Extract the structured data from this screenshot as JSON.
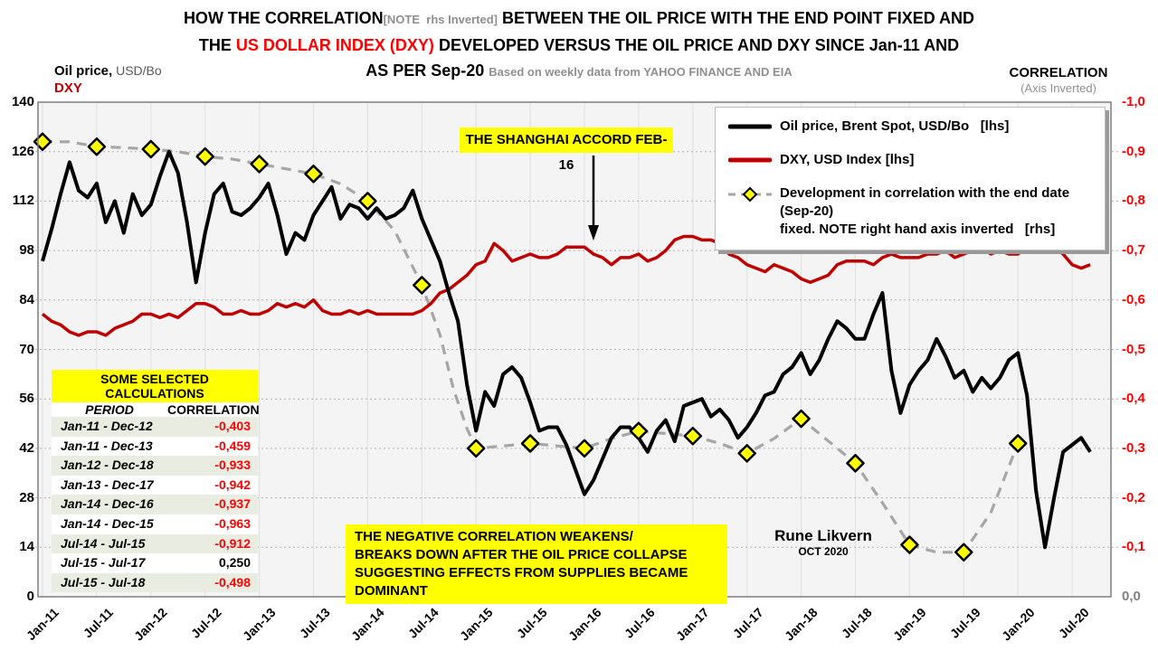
{
  "title": {
    "line1_a": "HOW THE CORRELATION",
    "line1_note": "[NOTE  rhs Inverted]",
    "line1_b": " BETWEEN THE OIL PRICE WITH THE END POINT FIXED AND",
    "line2_a": "THE ",
    "line2_red": "US DOLLAR INDEX (DXY)",
    "line2_b": " DEVELOPED VERSUS THE OIL PRICE AND DXY SINCE Jan-11 AND",
    "line3_a": "AS PER Sep-20 ",
    "line3_note": "Based on weekly data from YAHOO FINANCE AND EIA"
  },
  "axes": {
    "left_title_bold": "Oil price,",
    "left_title_rest": " USD/Bo",
    "left_title_dxy": "DXY",
    "right_title": "CORRELATION",
    "right_subtitle": "(Axis Inverted)",
    "left_ticks": [
      "140",
      "126",
      "112",
      "98",
      "84",
      "70",
      "56",
      "42",
      "28",
      "14",
      "0"
    ],
    "right_ticks": [
      "-1,0",
      "-0,9",
      "-0,8",
      "-0,7",
      "-0,6",
      "-0,5",
      "-0,4",
      "-0,3",
      "-0,2",
      "-0,1",
      "0,0"
    ],
    "x_ticks": [
      "Jan-11",
      "Jul-11",
      "Jan-12",
      "Jul-12",
      "Jan-13",
      "Jul-13",
      "Jan-14",
      "Jul-14",
      "Jan-15",
      "Jul-15",
      "Jan-16",
      "Jul-16",
      "Jan-17",
      "Jul-17",
      "Jan-18",
      "Jul-18",
      "Jan-19",
      "Jul-19",
      "Jan-20",
      "Jul-20"
    ]
  },
  "legend": {
    "item1": "Oil price, Brent Spot, USD/Bo   [lhs]",
    "item2": "DXY, USD Index [lhs]",
    "item3_line1": "Development in correlation with the end date (Sep-20)",
    "item3_line2": "fixed. NOTE right hand axis inverted   [rhs]"
  },
  "annotations": {
    "shanghai": "THE SHANGHAI ACCORD FEB-16",
    "breakdown_line1": "THE NEGATIVE CORRELATION WEAKENS/",
    "breakdown_line2": "BREAKS DOWN AFTER THE OIL PRICE COLLAPSE",
    "breakdown_line3": "SUGGESTING EFFECTS FROM SUPPLIES BECAME DOMINANT"
  },
  "attribution": {
    "name": "Rune Likvern",
    "date": "OCT 2020"
  },
  "table": {
    "title": "SOME SELECTED CALCULATIONS",
    "headers": [
      "PERIOD",
      "CORRELATION"
    ],
    "rows": [
      {
        "period": "Jan-11 - Dec-12",
        "correlation": "-0,403"
      },
      {
        "period": "Jan-11 - Dec-13",
        "correlation": "-0,459"
      },
      {
        "period": "Jan-12 - Dec-18",
        "correlation": "-0,933"
      },
      {
        "period": "Jan-13 - Dec-17",
        "correlation": "-0,942"
      },
      {
        "period": "Jan-14 - Dec-16",
        "correlation": "-0,937"
      },
      {
        "period": "Jan-14 - Dec-15",
        "correlation": "-0,963"
      },
      {
        "period": "Jul-14 - Jul-15",
        "correlation": "-0,912"
      },
      {
        "period": "Jul-15 - Jul-17",
        "correlation": "0,250"
      },
      {
        "period": "Jul-15 - Jul-18",
        "correlation": "-0,498"
      }
    ],
    "negative_color": "#ff0000",
    "positive_color": "#000000"
  },
  "colors": {
    "oil_line": "#000000",
    "dxy_line": "#c00000",
    "corr_line": "#a6a6a6",
    "diamond_fill": "#ffff00",
    "diamond_stroke": "#000000",
    "plot_bg": "#f4f4f4",
    "grid_h": "#b0b0b0",
    "grid_v": "#e2e2e2",
    "plot_border": "#7f7f7f",
    "right_axis_text": "#ff0000",
    "highlight_yellow": "#ffff00",
    "title_red": "#ff0000"
  },
  "chart_data": {
    "type": "line",
    "title": "Oil price & DXY vs correlation (end point fixed), weekly data Jan-11 to Sep-20",
    "x_axis": {
      "unit": "months since Jan-2011",
      "tick_month_index": [
        0,
        6,
        12,
        18,
        24,
        30,
        36,
        42,
        48,
        54,
        60,
        66,
        72,
        78,
        84,
        90,
        96,
        102,
        108,
        114
      ],
      "tick_labels": [
        "Jan-11",
        "Jul-11",
        "Jan-12",
        "Jul-12",
        "Jan-13",
        "Jul-13",
        "Jan-14",
        "Jul-14",
        "Jan-15",
        "Jul-15",
        "Jan-16",
        "Jul-16",
        "Jan-17",
        "Jul-17",
        "Jan-18",
        "Jul-18",
        "Jan-19",
        "Jul-19",
        "Jan-20",
        "Jul-20"
      ]
    },
    "y_left": {
      "label": "Oil price USD/Bo and DXY",
      "min": 0,
      "max": 140,
      "step": 14
    },
    "y_right": {
      "label": "Correlation (axis inverted)",
      "top": -1.0,
      "bottom": 0.0,
      "step": 0.1
    },
    "grid": true,
    "legend_position": "top-right",
    "series": [
      {
        "name": "Oil price, Brent Spot, USD/Bo",
        "axis": "left",
        "color": "#000000",
        "style": "solid",
        "x_start": 0,
        "x_step": 1,
        "values": [
          95,
          104,
          114,
          123,
          115,
          113,
          117,
          106,
          112,
          103,
          114,
          108,
          111,
          119,
          126,
          120,
          106,
          89,
          103,
          114,
          117,
          109,
          108,
          110,
          113,
          117,
          108,
          97,
          103,
          101,
          108,
          112,
          116,
          107,
          111,
          110,
          107,
          110,
          107,
          108,
          110,
          115,
          107,
          101,
          95,
          86,
          78,
          60,
          47,
          58,
          54,
          63,
          65,
          62,
          55,
          47,
          48,
          48,
          43,
          36,
          29,
          33,
          39,
          45,
          48,
          48,
          45,
          41,
          47,
          50,
          44,
          54,
          55,
          56,
          51,
          53,
          50,
          45,
          48,
          52,
          57,
          58,
          63,
          65,
          69,
          63,
          67,
          73,
          78,
          76,
          73,
          73,
          80,
          86,
          64,
          52,
          60,
          64,
          67,
          73,
          68,
          62,
          64,
          58,
          62,
          59,
          62,
          67,
          69,
          57,
          30,
          14,
          28,
          41,
          43,
          45,
          41
        ]
      },
      {
        "name": "DXY, USD Index",
        "axis": "left",
        "color": "#c00000",
        "style": "solid",
        "x_start": 0,
        "x_step": 1,
        "values": [
          80,
          78,
          77,
          75,
          74,
          75,
          75,
          74,
          76,
          77,
          78,
          80,
          80,
          79,
          80,
          79,
          81,
          83,
          83,
          82,
          80,
          80,
          81,
          80,
          80,
          81,
          83,
          82,
          83,
          82,
          84,
          81,
          80,
          80,
          81,
          80,
          81,
          80,
          80,
          80,
          80,
          80,
          81,
          83,
          86,
          87,
          89,
          91,
          94,
          95,
          100,
          98,
          95,
          96,
          97,
          96,
          96,
          97,
          99,
          99,
          99,
          97,
          96,
          94,
          96,
          96,
          97,
          95,
          96,
          98,
          101,
          102,
          102,
          101,
          101,
          100,
          97,
          96,
          94,
          93,
          92,
          94,
          93,
          92,
          90,
          89,
          90,
          91,
          94,
          95,
          95,
          95,
          94,
          96,
          97,
          96,
          96,
          96,
          97,
          97,
          98,
          96,
          97,
          98,
          99,
          97,
          98,
          97,
          97,
          99,
          103,
          100,
          99,
          97,
          94,
          93,
          94
        ]
      },
      {
        "name": "Development in correlation with end date (Sep-20) fixed",
        "axis": "right_inverted",
        "color": "#a6a6a6",
        "style": "dashed",
        "x": [
          0,
          3,
          6,
          9,
          12,
          15,
          18,
          21,
          24,
          27,
          30,
          33,
          36,
          39,
          42,
          44,
          45.5,
          47,
          48,
          51,
          54,
          57,
          60,
          63,
          66,
          69,
          72,
          75,
          78,
          81,
          84,
          87,
          90,
          93,
          96,
          99,
          102,
          105,
          108
        ],
        "values": [
          -0.92,
          -0.92,
          -0.91,
          -0.908,
          -0.905,
          -0.9,
          -0.89,
          -0.885,
          -0.875,
          -0.865,
          -0.855,
          -0.835,
          -0.8,
          -0.74,
          -0.63,
          -0.53,
          -0.42,
          -0.34,
          -0.3,
          -0.305,
          -0.31,
          -0.305,
          -0.3,
          -0.32,
          -0.335,
          -0.33,
          -0.325,
          -0.31,
          -0.29,
          -0.32,
          -0.36,
          -0.315,
          -0.27,
          -0.19,
          -0.105,
          -0.09,
          -0.09,
          -0.17,
          -0.31
        ],
        "markers": {
          "shape": "diamond",
          "fill": "#ffff00",
          "stroke": "#000000",
          "x": [
            0,
            6,
            12,
            18,
            24,
            30,
            36,
            42,
            48,
            54,
            60,
            66,
            72,
            78,
            84,
            90,
            96,
            102,
            108
          ],
          "values": [
            -0.92,
            -0.91,
            -0.905,
            -0.89,
            -0.875,
            -0.855,
            -0.8,
            -0.63,
            -0.3,
            -0.31,
            -0.3,
            -0.335,
            -0.325,
            -0.29,
            -0.36,
            -0.27,
            -0.105,
            -0.09,
            -0.31
          ]
        }
      }
    ],
    "annotation_arrow": {
      "x_month": 61,
      "label": "THE SHANGHAI ACCORD FEB-16"
    }
  }
}
